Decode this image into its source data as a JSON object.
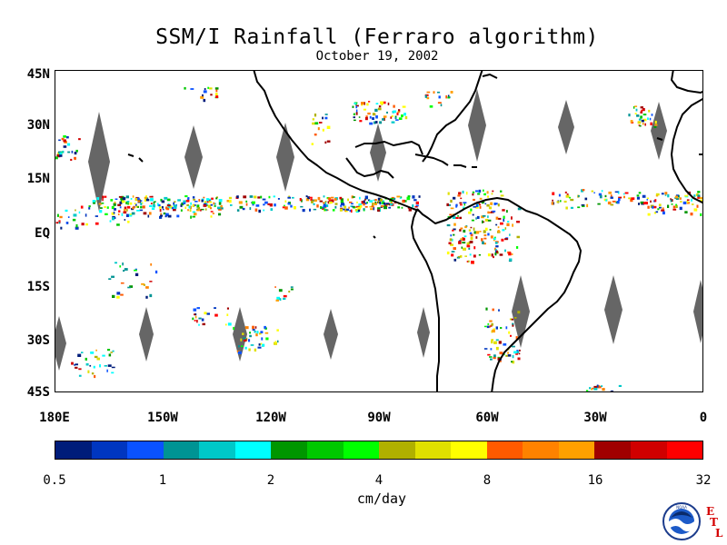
{
  "title": "SSM/I Rainfall (Ferraro algorithm)",
  "date": "October 19, 2002",
  "lat_labels": [
    "45N",
    "30N",
    "15N",
    "EQ",
    "15S",
    "30S",
    "45S"
  ],
  "lon_labels": [
    "180E",
    "150W",
    "120W",
    "90W",
    "60W",
    "30W",
    "0"
  ],
  "colorbar": {
    "colors": [
      "#001c7a",
      "#0036c0",
      "#0a52ff",
      "#009494",
      "#00c8c8",
      "#00ffff",
      "#009600",
      "#00c800",
      "#00ff00",
      "#b0b000",
      "#e0e000",
      "#ffff00",
      "#ff5a00",
      "#ff8200",
      "#ffa000",
      "#a00000",
      "#d00000",
      "#ff0000"
    ],
    "tick_labels": [
      "0.5",
      "1",
      "2",
      "4",
      "8",
      "16",
      "32"
    ],
    "units": "cm/day"
  },
  "logo": {
    "name": "NOAA",
    "badge_letters": [
      "E",
      "T",
      "L"
    ]
  },
  "colors": {
    "land_outline": "#000000",
    "missing_swath": "#666666"
  }
}
